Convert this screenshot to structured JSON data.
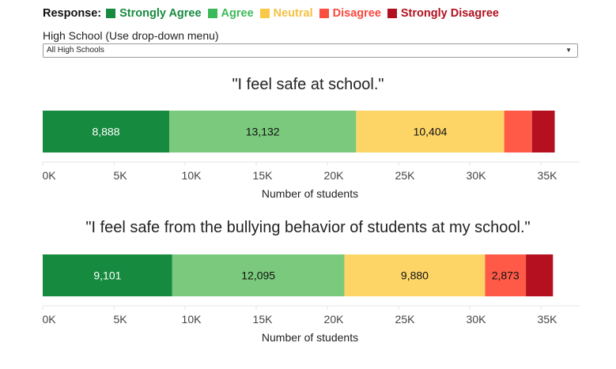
{
  "legend": {
    "title": "Response:",
    "items": [
      {
        "label": "Strongly Agree",
        "color": "#168a3e",
        "text_color": "#168a3e"
      },
      {
        "label": "Agree",
        "color": "#3cb95a",
        "text_color": "#3cb95a"
      },
      {
        "label": "Neutral",
        "color": "#f9c846",
        "text_color": "#f5c142"
      },
      {
        "label": "Disagree",
        "color": "#fb4f3f",
        "text_color": "#f9473c"
      },
      {
        "label": "Strongly Disagree",
        "color": "#b0101f",
        "text_color": "#b0101f"
      }
    ]
  },
  "filter": {
    "label": "High School (Use drop-down menu)",
    "selected": "All High Schools"
  },
  "chart_data": [
    {
      "type": "bar",
      "orientation": "horizontal",
      "stacked": true,
      "title": "\"I feel safe at school.\"",
      "xlabel": "Number of students",
      "xlim": [
        0,
        37500
      ],
      "x_ticks": [
        "0K",
        "5K",
        "10K",
        "15K",
        "20K",
        "25K",
        "30K",
        "35K"
      ],
      "categories": [
        "Strongly Agree",
        "Agree",
        "Neutral",
        "Disagree",
        "Strongly Disagree"
      ],
      "colors": [
        "#168a3e",
        "#7ac97c",
        "#fdd567",
        "#ff5a47",
        "#b4101f"
      ],
      "label_colors": [
        "#ffffff",
        "#111111",
        "#111111",
        "#111111",
        "#ffffff"
      ],
      "values": [
        8888,
        13132,
        10404,
        1950,
        1600
      ],
      "labels": [
        "8,888",
        "13,132",
        "10,404",
        "",
        ""
      ]
    },
    {
      "type": "bar",
      "orientation": "horizontal",
      "stacked": true,
      "title": "\"I feel safe from the bullying behavior of students at my school.\"",
      "xlabel": "Number of students",
      "xlim": [
        0,
        37500
      ],
      "x_ticks": [
        "0K",
        "5K",
        "10K",
        "15K",
        "20K",
        "25K",
        "30K",
        "35K"
      ],
      "categories": [
        "Strongly Agree",
        "Agree",
        "Neutral",
        "Disagree",
        "Strongly Disagree"
      ],
      "colors": [
        "#168a3e",
        "#7ac97c",
        "#fdd567",
        "#ff5a47",
        "#b4101f"
      ],
      "label_colors": [
        "#ffffff",
        "#111111",
        "#111111",
        "#111111",
        "#ffffff"
      ],
      "values": [
        9101,
        12095,
        9880,
        2873,
        1900
      ],
      "labels": [
        "9,101",
        "12,095",
        "9,880",
        "2,873",
        ""
      ]
    }
  ]
}
